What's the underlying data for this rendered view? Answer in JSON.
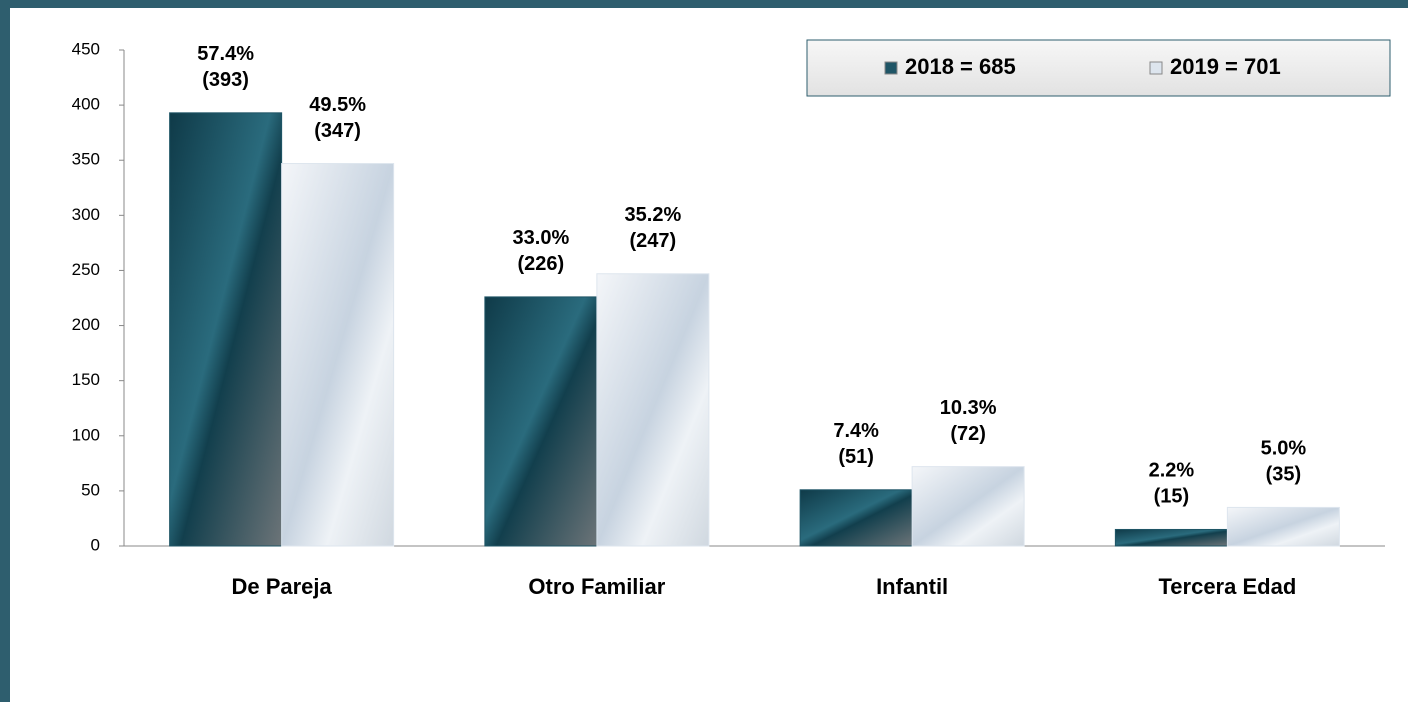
{
  "chart_data": {
    "type": "bar",
    "categories": [
      "De Pareja",
      "Otro Familiar",
      "Infantil",
      "Tercera Edad"
    ],
    "series": [
      {
        "name": "2018 =  685",
        "color": "#1f5566",
        "values": [
          393,
          226,
          51,
          15
        ],
        "percent_labels": [
          "57.4%",
          "33.0%",
          "7.4%",
          "2.2%"
        ],
        "value_labels": [
          "(393)",
          "(226)",
          "(51)",
          "(15)"
        ]
      },
      {
        "name": "2019 =  701",
        "color": "#dde5ee",
        "values": [
          347,
          247,
          72,
          35
        ],
        "percent_labels": [
          "49.5%",
          "35.2%",
          "10.3%",
          "5.0%"
        ],
        "value_labels": [
          "(347)",
          "(247)",
          "(72)",
          "(35)"
        ]
      }
    ],
    "ylim": [
      0,
      450
    ],
    "yticks": [
      0,
      50,
      100,
      150,
      200,
      250,
      300,
      350,
      400,
      450
    ],
    "grid": false,
    "legend": "top-right"
  }
}
